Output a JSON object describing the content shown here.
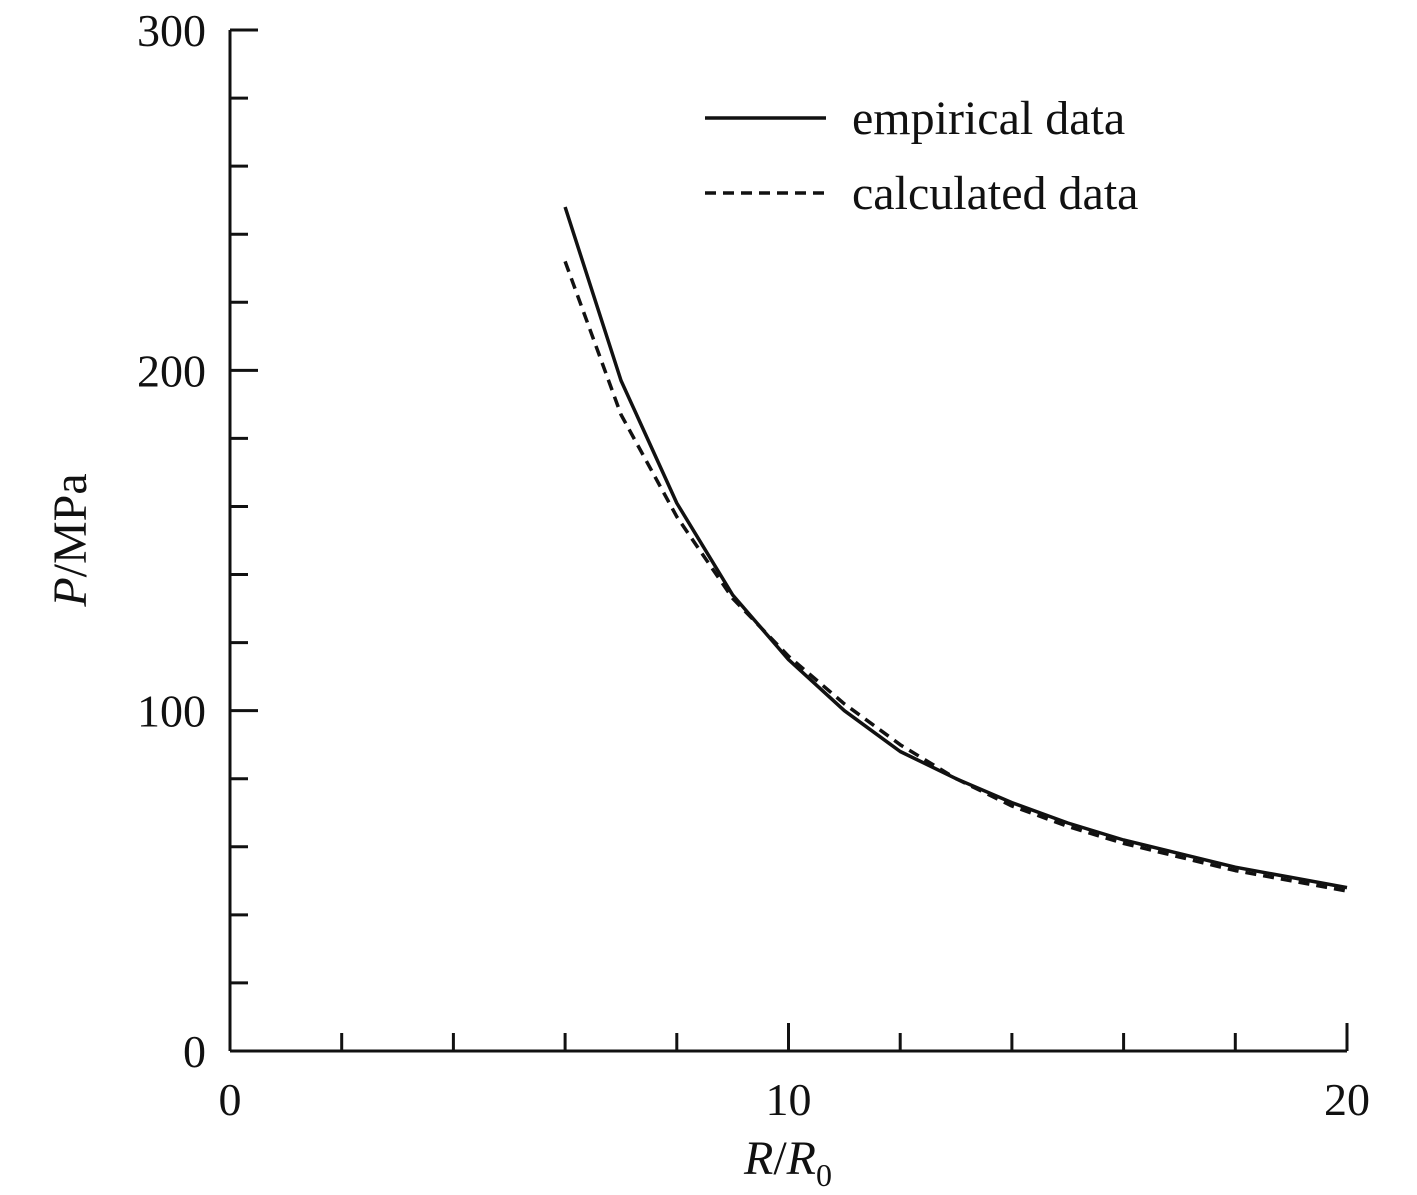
{
  "chart_data": {
    "type": "line",
    "title": "",
    "xlabel": {
      "main": "R",
      "sep": "/",
      "den": "R",
      "sub": "0"
    },
    "ylabel": {
      "main": "P",
      "rest": "/MPa"
    },
    "xlim": [
      0,
      20
    ],
    "ylim": [
      0,
      300
    ],
    "x_major_ticks": [
      0,
      10,
      20
    ],
    "x_minor_ticks": [
      2,
      4,
      6,
      8,
      12,
      14,
      16,
      18
    ],
    "y_major_ticks": [
      0,
      100,
      200,
      300
    ],
    "y_minor_ticks": [
      20,
      40,
      60,
      80,
      120,
      140,
      160,
      180,
      220,
      240,
      260,
      280
    ],
    "x_tick_labels": [
      "0",
      "10",
      "20"
    ],
    "y_tick_labels": [
      "0",
      "100",
      "200",
      "300"
    ],
    "grid": false,
    "legend_position": "top-right",
    "series": [
      {
        "name": "empirical data",
        "style": "solid",
        "x": [
          6,
          7,
          8,
          9,
          10,
          11,
          12,
          13,
          14,
          15,
          16,
          17,
          18,
          19,
          20
        ],
        "y": [
          248,
          197,
          161,
          134,
          115,
          100,
          88,
          80,
          73,
          67,
          62,
          58,
          54,
          51,
          48
        ]
      },
      {
        "name": "calculated data",
        "style": "dashed",
        "x": [
          6,
          7,
          8,
          9,
          10,
          11,
          12,
          13,
          14,
          15,
          16,
          17,
          18,
          19,
          20
        ],
        "y": [
          232,
          187,
          157,
          133,
          116,
          102,
          90,
          80,
          72,
          66,
          61,
          57,
          53,
          50,
          47
        ]
      }
    ]
  }
}
